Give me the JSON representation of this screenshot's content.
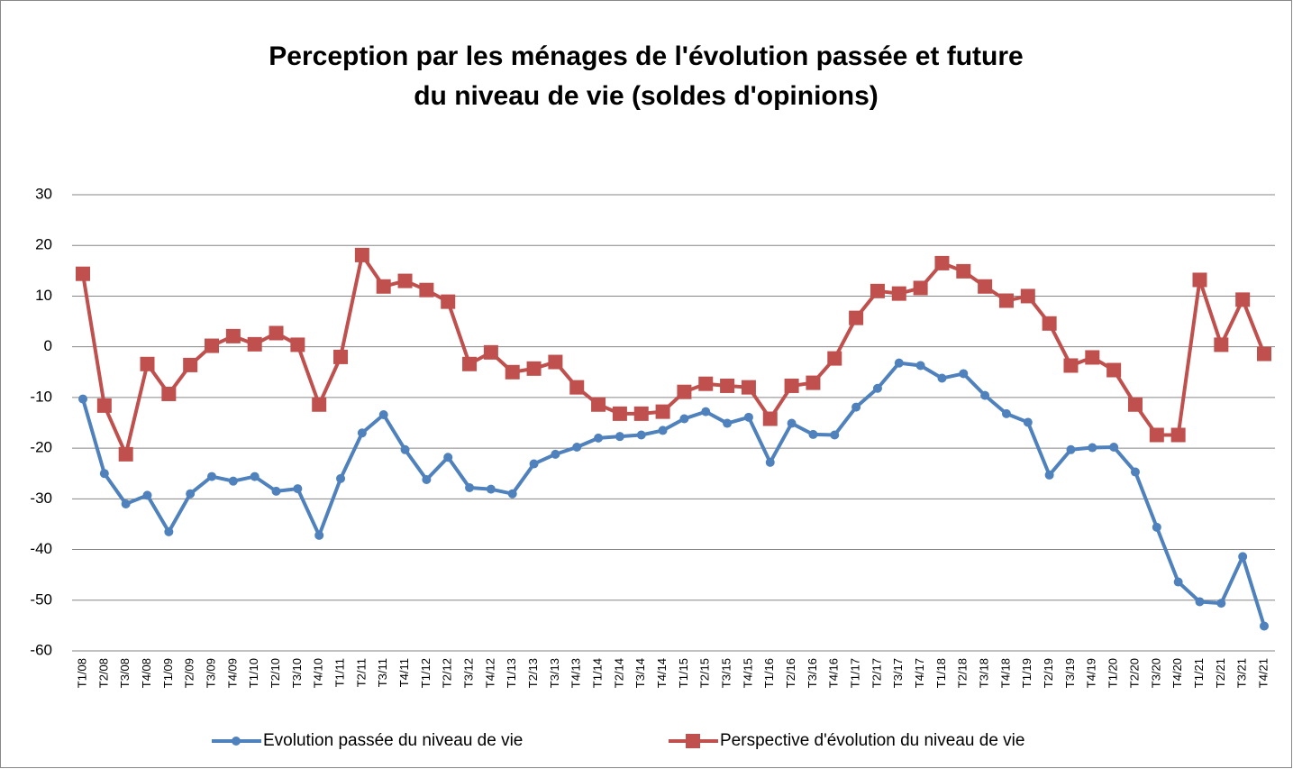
{
  "chart_data": {
    "type": "line",
    "title": [
      "Perception par les ménages de l'évolution passée et future",
      "du niveau de vie  (soldes d'opinions)"
    ],
    "categories": [
      "T1/08",
      "T2/08",
      "T3/08",
      "T4/08",
      "T1/09",
      "T2/09",
      "T3/09",
      "T4/09",
      "T1/10",
      "T2/10",
      "T3/10",
      "T4/10",
      "T1/11",
      "T2/11",
      "T3/11",
      "T4/11",
      "T1/12",
      "T2/12",
      "T3/12",
      "T4/12",
      "T1/13",
      "T2/13",
      "T3/13",
      "T4/13",
      "T1/14",
      "T2/14",
      "T3/14",
      "T4/14",
      "T1/15",
      "T2/15",
      "T3/15",
      "T4/15",
      "T1/16",
      "T2/16",
      "T3/16",
      "T4/16",
      "T1/17",
      "T2/17",
      "T3/17",
      "T4/17",
      "T1/18",
      "T2/18",
      "T3/18",
      "T4/18",
      "T1/19",
      "T2/19",
      "T3/19",
      "T4/19",
      "T1/20",
      "T2/20",
      "T3/20",
      "T4/20",
      "T1/21",
      "T2/21",
      "T3/21",
      "T4/21"
    ],
    "series": [
      {
        "name": "Evolution  passée du niveau de vie",
        "color": "#4f81bd",
        "marker": "circle",
        "values": [
          -10.3,
          -25,
          -31,
          -29.3,
          -36.5,
          -29,
          -25.6,
          -26.5,
          -25.6,
          -28.5,
          -28,
          -37.2,
          -26,
          -17,
          -13.4,
          -20.3,
          -26.2,
          -21.8,
          -27.8,
          -28.1,
          -29,
          -23.1,
          -21.2,
          -19.8,
          -18,
          -17.7,
          -17.4,
          -16.5,
          -14.2,
          -12.8,
          -15.1,
          -13.9,
          -22.8,
          -15.1,
          -17.3,
          -17.4,
          -11.9,
          -8.2,
          -3.2,
          -3.7,
          -6.2,
          -5.3,
          -9.6,
          -13.2,
          -14.9,
          -25.3,
          -20.3,
          -19.9,
          -19.8,
          -24.7,
          -35.6,
          -46.4,
          -50.3,
          -50.6,
          -41.4,
          -55.1
        ]
      },
      {
        "name": "Perspective d'évolution du niveau de vie",
        "color": "#c0504d",
        "marker": "square",
        "values": [
          14.4,
          -11.6,
          -21.2,
          -3.4,
          -9.3,
          -3.6,
          0.2,
          2.1,
          0.5,
          2.7,
          0.4,
          -11.4,
          -2,
          18.1,
          11.9,
          13,
          11.2,
          8.9,
          -3.4,
          -1.1,
          -5,
          -4.3,
          -3,
          -8,
          -11.4,
          -13.2,
          -13.2,
          -12.8,
          -8.9,
          -7.3,
          -7.7,
          -8,
          -14.2,
          -7.7,
          -7.1,
          -2.3,
          5.7,
          11,
          10.5,
          11.6,
          16.5,
          14.9,
          11.9,
          9.1,
          10,
          4.6,
          -3.7,
          -2.1,
          -4.6,
          -11.4,
          -17.4,
          -17.4,
          13.2,
          0.4,
          9.3,
          -1.4
        ]
      }
    ],
    "ylim": [
      -60,
      30
    ],
    "yticks": [
      -60,
      -50,
      -40,
      -30,
      -20,
      -10,
      0,
      10,
      20,
      30
    ],
    "grid": true,
    "legend": "bottom"
  }
}
